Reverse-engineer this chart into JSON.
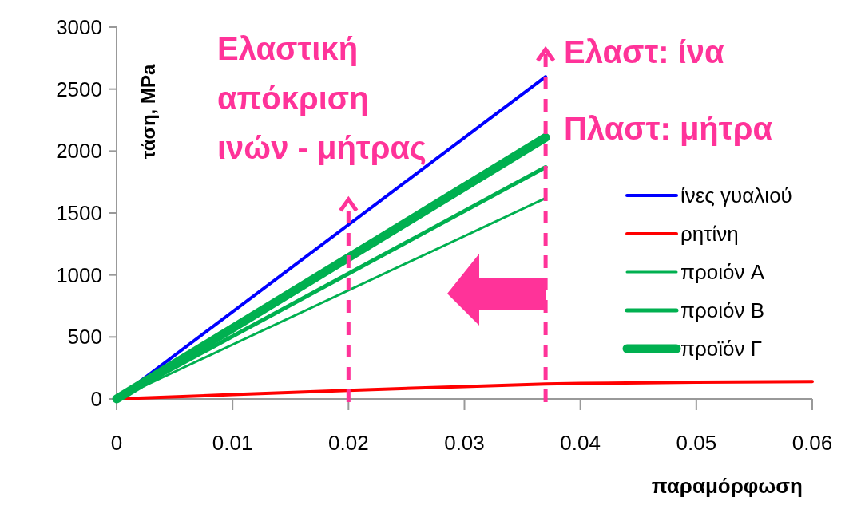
{
  "chart_data": {
    "type": "line",
    "xlabel": "παραμόρφωση",
    "ylabel": "τάση, MPa",
    "xlim": [
      0,
      0.06
    ],
    "xticks": [
      0,
      0.01,
      0.02,
      0.03,
      0.04,
      0.05,
      0.06
    ],
    "ylim": [
      0,
      3000
    ],
    "yticks": [
      0,
      500,
      1000,
      1500,
      2000,
      2500,
      3000
    ],
    "series": [
      {
        "name": "ίνες γυαλιού",
        "color": "#0000ff",
        "x": [
          0,
          0.037
        ],
        "values": [
          0,
          2600
        ]
      },
      {
        "name": "ρητίνη",
        "color": "#ff0000",
        "x": [
          0,
          0.01,
          0.02,
          0.03,
          0.037,
          0.04,
          0.05,
          0.06
        ],
        "values": [
          0,
          35,
          70,
          100,
          120,
          125,
          135,
          140
        ]
      },
      {
        "name": "προιόν A",
        "color": "#00b050",
        "x": [
          0,
          0.037
        ],
        "values": [
          0,
          1620
        ]
      },
      {
        "name": "προιόν B",
        "color": "#00b050",
        "x": [
          0,
          0.037
        ],
        "values": [
          0,
          1870
        ]
      },
      {
        "name": "προϊόν Γ",
        "color": "#00b050",
        "x": [
          0,
          0.037
        ],
        "values": [
          0,
          2110
        ]
      }
    ],
    "ref_lines": [
      {
        "axis": "x",
        "value": 0.02,
        "color": "#ff3399",
        "line_style": "dashed"
      },
      {
        "axis": "x",
        "value": 0.037,
        "color": "#ff3399",
        "line_style": "dashed"
      }
    ],
    "annotations": [
      "Ελαστική απόκριση ινών - μήτρας",
      "Ελαστ: ίνα",
      "Πλαστ: μήτρα"
    ],
    "legend": "right",
    "grid": false,
    "marker": "none",
    "line_style": "solid"
  }
}
